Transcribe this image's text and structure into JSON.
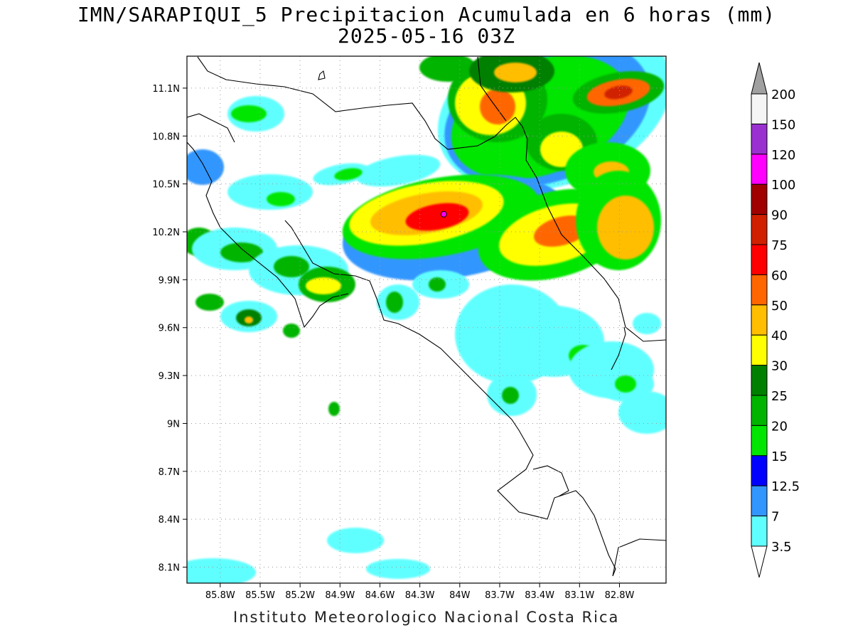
{
  "header": {
    "title_line1": "IMN/SARAPIQUI_5 Precipitacion Acumulada en 6 horas (mm)",
    "title_line2": "2025-05-16 03Z"
  },
  "footer": {
    "text": "Instituto Meteorologico Nacional Costa Rica"
  },
  "map": {
    "lon_range": [
      -86.05,
      -82.45
    ],
    "lat_range": [
      8.0,
      11.3
    ],
    "lat_ticks": [
      "11.1N",
      "10.8N",
      "10.5N",
      "10.2N",
      "9.9N",
      "9.6N",
      "9.3N",
      "9N",
      "8.7N",
      "8.4N",
      "8.1N"
    ],
    "lat_values": [
      11.1,
      10.8,
      10.5,
      10.2,
      9.9,
      9.6,
      9.3,
      9.0,
      8.7,
      8.4,
      8.1
    ],
    "lon_ticks": [
      "85.8W",
      "85.5W",
      "85.2W",
      "84.9W",
      "84.6W",
      "84.3W",
      "84W",
      "83.7W",
      "83.4W",
      "83.1W",
      "82.8W"
    ],
    "lon_values": [
      -85.8,
      -85.5,
      -85.2,
      -84.9,
      -84.6,
      -84.3,
      -84.0,
      -83.7,
      -83.4,
      -83.1,
      -82.8
    ],
    "grid": "dotted",
    "max_marker": {
      "lon": -84.12,
      "lat": 10.31,
      "value_class": "120"
    }
  },
  "colorbar": {
    "labels": [
      "200",
      "150",
      "120",
      "100",
      "90",
      "75",
      "60",
      "50",
      "40",
      "30",
      "25",
      "20",
      "15",
      "12.5",
      "7",
      "3.5"
    ],
    "colors": [
      "#f5f5f5",
      "#9b30d0",
      "#ff00ff",
      "#a00000",
      "#d02000",
      "#ff0000",
      "#ff6600",
      "#ffbe00",
      "#ffff00",
      "#008000",
      "#00b400",
      "#00e600",
      "#0000ff",
      "#3296ff",
      "#60ffff"
    ],
    "overflow_color": "#a0a0a0"
  }
}
